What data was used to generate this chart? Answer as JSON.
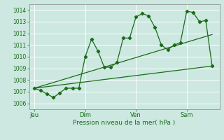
{
  "bg_color": "#cce8e0",
  "grid_color": "#ffffff",
  "line_color": "#1a6b1a",
  "marker_color": "#1a6b1a",
  "xlabel": "Pression niveau de la mer( hPa )",
  "ylim": [
    1005.5,
    1014.5
  ],
  "yticks": [
    1006,
    1007,
    1008,
    1009,
    1010,
    1011,
    1012,
    1013,
    1014
  ],
  "day_labels": [
    "Jeu",
    "Dim",
    "Ven",
    "Sam"
  ],
  "day_positions": [
    0,
    48,
    96,
    144
  ],
  "xlim": [
    -5,
    175
  ],
  "series1_x": [
    0,
    6,
    12,
    18,
    24,
    30,
    36,
    42,
    48,
    54,
    60,
    66,
    72,
    78,
    84,
    90,
    96,
    102,
    108,
    114,
    120,
    126,
    132,
    138,
    144,
    150,
    156,
    162,
    168
  ],
  "series1_y": [
    1007.3,
    1007.1,
    1006.8,
    1006.5,
    1006.9,
    1007.3,
    1007.3,
    1007.3,
    1010.0,
    1011.5,
    1010.5,
    1009.1,
    1009.1,
    1009.5,
    1011.6,
    1011.6,
    1013.4,
    1013.7,
    1013.5,
    1012.5,
    1011.0,
    1010.6,
    1011.0,
    1011.2,
    1013.9,
    1013.8,
    1013.0,
    1013.1,
    1009.2
  ],
  "series2_x": [
    0,
    168
  ],
  "series2_y": [
    1007.3,
    1011.9
  ],
  "series3_x": [
    0,
    168
  ],
  "series3_y": [
    1007.3,
    1009.2
  ]
}
